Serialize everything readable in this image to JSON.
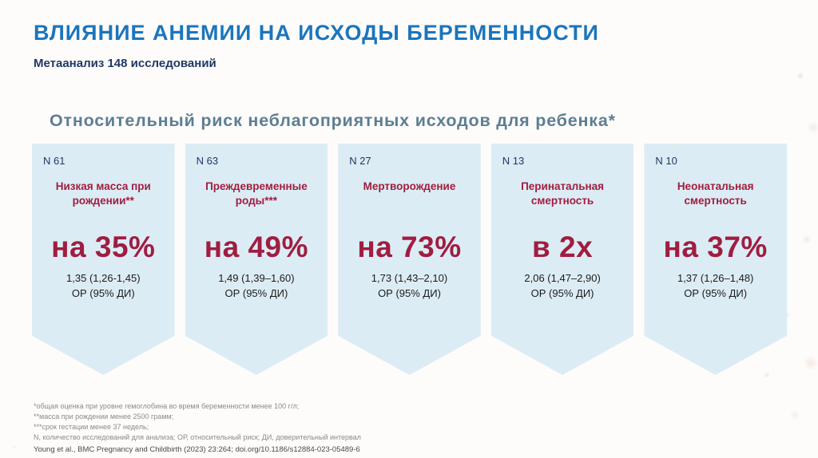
{
  "slide": {
    "title": "ВЛИЯНИЕ АНЕМИИ НА ИСХОДЫ БЕРЕМЕННОСТИ",
    "subtitle": "Метаанализ 148 исследований",
    "section_heading": "Относительный риск неблагоприятных исходов для ребенка*"
  },
  "cards": [
    {
      "n": "N 61",
      "title": "Низкая масса при рождении**",
      "stat": "на 35%",
      "value": "1,35 (1,26-1,45)",
      "ci": "ОР (95% ДИ)"
    },
    {
      "n": "N 63",
      "title": "Преждевременные роды***",
      "stat": "на 49%",
      "value": "1,49 (1,39–1,60)",
      "ci": "ОР (95% ДИ)"
    },
    {
      "n": "N 27",
      "title": "Мертворождение",
      "stat": "на 73%",
      "value": "1,73 (1,43–2,10)",
      "ci": "ОР (95% ДИ)"
    },
    {
      "n": "N 13",
      "title": "Перинатальная смертность",
      "stat": "в 2х",
      "value": "2,06 (1,47–2,90)",
      "ci": "ОР (95% ДИ)"
    },
    {
      "n": "N 10",
      "title": "Неонатальная смертность",
      "stat": "на 37%",
      "value": "1,37 (1,26–1,48)",
      "ci": "ОР (95% ДИ)"
    }
  ],
  "footnotes": [
    "*общая оценка при уровне гемоглобина во время беременности менее 100 г/л;",
    "**масса при рождении менее 2500 грамм;",
    "***срок гестации менее 37 недель;",
    "N, количество исследований для анализа; ОР, относительный риск; ДИ, доверительный интервал"
  ],
  "citation": "Young et al., BMC Pregnancy and Childbirth (2023) 23:264; doi.org/10.1186/s12884-023-05489-6",
  "colors": {
    "title_blue": "#1b75bc",
    "subtitle_navy": "#1f3864",
    "heading_gray_blue": "#5e7e91",
    "card_background": "#dcecf4",
    "accent_crimson": "#a01d41"
  }
}
